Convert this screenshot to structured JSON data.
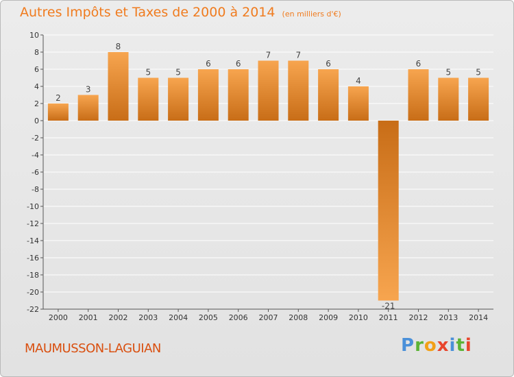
{
  "header": {
    "title": "Autres Impôts et Taxes de 2000 à 2014",
    "subtitle": "(en milliers d'€)"
  },
  "footer": {
    "commune": "MAUMUSSON-LAGUIAN",
    "logo": "Proxiti"
  },
  "colors": {
    "accent": "#f07b1e",
    "commune": "#d94f0f",
    "bar_light": "#f7a54f",
    "bar_dark": "#c86d17",
    "axis": "#555555",
    "grid": "#ffffff"
  },
  "chart_data": {
    "type": "bar",
    "title": "Autres Impôts et Taxes de 2000 à 2014",
    "subtitle": "(en milliers d'€)",
    "xlabel": "",
    "ylabel": "",
    "categories": [
      "2000",
      "2001",
      "2002",
      "2003",
      "2004",
      "2005",
      "2006",
      "2007",
      "2008",
      "2009",
      "2010",
      "2011",
      "2012",
      "2013",
      "2014"
    ],
    "values": [
      2,
      3,
      8,
      5,
      5,
      6,
      6,
      7,
      7,
      6,
      4,
      -21,
      6,
      5,
      5
    ],
    "data_labels": [
      "2",
      "3",
      "8",
      "5",
      "5",
      "6",
      "6",
      "7",
      "7",
      "6",
      "4",
      "-21",
      "6",
      "5",
      "5"
    ],
    "ylim": [
      -22,
      10
    ],
    "yticks": [
      10,
      8,
      6,
      4,
      2,
      0,
      -2,
      -4,
      -6,
      -8,
      -10,
      -12,
      -14,
      -16,
      -18,
      -20,
      -22
    ],
    "grid": true
  }
}
